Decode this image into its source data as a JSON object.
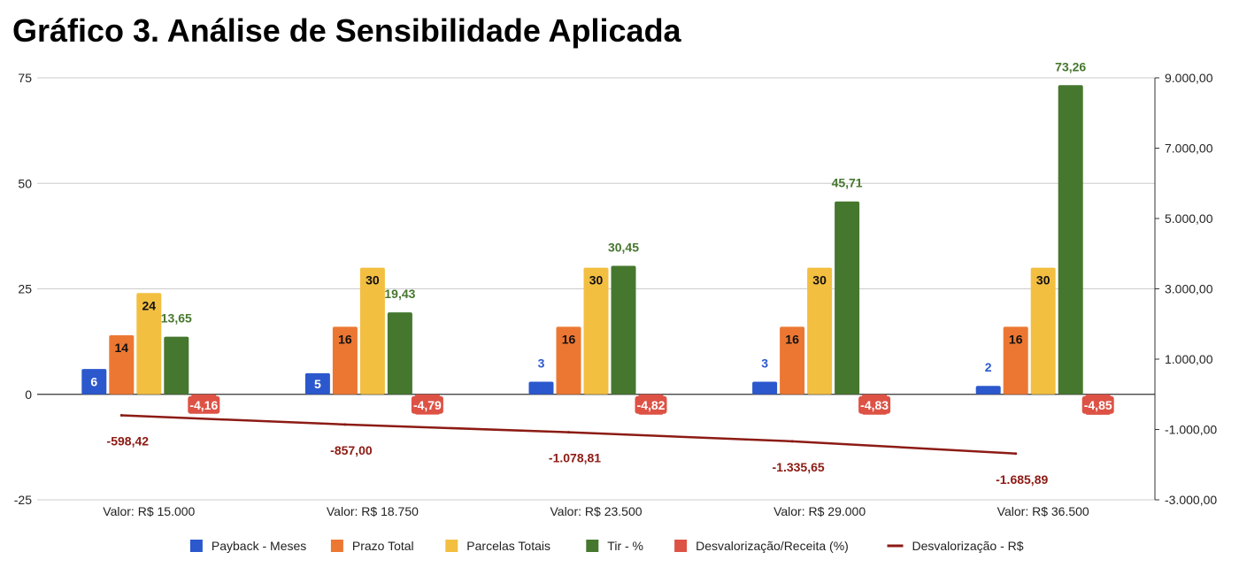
{
  "title": "Gráfico 3. Análise de Sensibilidade Aplicada",
  "chart_data": {
    "type": "bar",
    "title": "Gráfico 3. Análise de Sensibilidade Aplicada",
    "categories": [
      "Valor: R$ 15.000",
      "Valor: R$ 18.750",
      "Valor: R$ 23.500",
      "Valor: R$ 29.000",
      "Valor: R$ 36.500"
    ],
    "left_axis": {
      "ticks": [
        "75",
        "50",
        "25",
        "0",
        "-25"
      ],
      "ylim": [
        -25,
        75
      ]
    },
    "right_axis": {
      "ticks": [
        "9.000,00",
        "7.000,00",
        "5.000,00",
        "3.000,00",
        "1.000,00",
        "-1.000,00",
        "-3.000,00"
      ],
      "ylim": [
        -3000,
        9000
      ]
    },
    "grid": true,
    "legend_position": "bottom",
    "series": [
      {
        "name": "Payback - Meses",
        "type": "bar",
        "axis": "left",
        "color": "#2b58cd",
        "values": [
          6,
          5,
          3,
          3,
          2
        ],
        "labels": [
          "6",
          "5",
          "3",
          "3",
          "2"
        ]
      },
      {
        "name": "Prazo Total",
        "type": "bar",
        "axis": "left",
        "color": "#ec7732",
        "values": [
          14,
          16,
          16,
          16,
          16
        ],
        "labels": [
          "14",
          "16",
          "16",
          "16",
          "16"
        ]
      },
      {
        "name": "Parcelas Totais",
        "type": "bar",
        "axis": "left",
        "color": "#f3bf41",
        "values": [
          24,
          30,
          30,
          30,
          30
        ],
        "labels": [
          "24",
          "30",
          "30",
          "30",
          "30"
        ]
      },
      {
        "name": "Tir - %",
        "type": "bar",
        "axis": "left",
        "color": "#46772e",
        "values": [
          13.65,
          19.43,
          30.45,
          45.71,
          73.26
        ],
        "labels": [
          "13,65",
          "19,43",
          "30,45",
          "45,71",
          "73,26"
        ]
      },
      {
        "name": "Desvalorização/Receita (%)",
        "type": "bar",
        "axis": "left",
        "color": "#dd5245",
        "values": [
          -4.16,
          -4.79,
          -4.82,
          -4.83,
          -4.85
        ],
        "labels": [
          "-4,16",
          "-4,79",
          "-4,82",
          "-4,83",
          "-4,85"
        ]
      },
      {
        "name": "Desvalorização - R$",
        "type": "line",
        "axis": "right",
        "color": "#8c1b14",
        "values": [
          -598.42,
          -857.0,
          -1078.81,
          -1335.65,
          -1685.89
        ],
        "labels": [
          "-598,42",
          "-857,00",
          "-1.078,81",
          "-1.335,65",
          "-1.685,89"
        ]
      }
    ]
  }
}
